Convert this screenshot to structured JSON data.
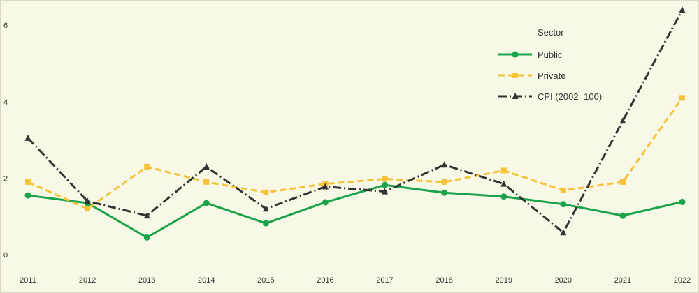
{
  "chart_data": {
    "type": "line",
    "title": "",
    "xlabel": "",
    "ylabel": "",
    "categories": [
      "2011",
      "2012",
      "2013",
      "2014",
      "2015",
      "2016",
      "2017",
      "2018",
      "2019",
      "2020",
      "2021",
      "2022"
    ],
    "yticks": [
      "0",
      "2",
      "4",
      "6"
    ],
    "ylim": [
      -0.2,
      6.55
    ],
    "grid": false,
    "legend_title": "Sector",
    "legend_position": "top-right",
    "series": [
      {
        "name": "Public",
        "color": "#1aa34a",
        "dash": "solid",
        "marker": "circle",
        "values": [
          1.55,
          1.35,
          0.45,
          1.35,
          0.82,
          1.37,
          1.82,
          1.62,
          1.52,
          1.32,
          1.02,
          1.38
        ]
      },
      {
        "name": "Private",
        "color": "#f5c23a",
        "dash": "dashed",
        "marker": "square",
        "values": [
          1.9,
          1.2,
          2.3,
          1.9,
          1.63,
          1.85,
          1.98,
          1.9,
          2.2,
          1.68,
          1.9,
          4.1
        ]
      },
      {
        "name": "CPI (2002=100)",
        "color": "#333333",
        "dash": "dashdot",
        "marker": "triangle",
        "values": [
          3.05,
          1.4,
          1.02,
          2.3,
          1.2,
          1.78,
          1.65,
          2.35,
          1.85,
          0.58,
          3.5,
          6.4
        ]
      }
    ]
  }
}
